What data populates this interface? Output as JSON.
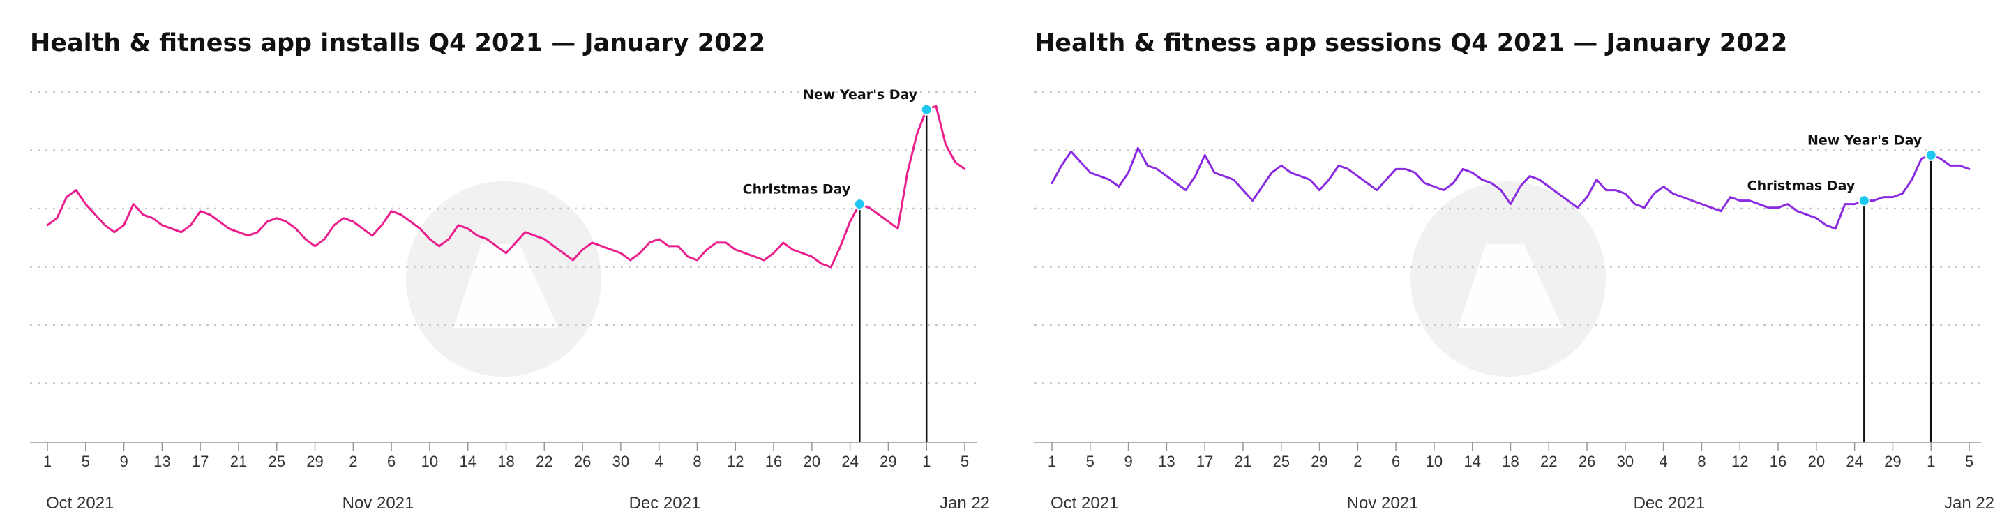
{
  "chart_data": [
    {
      "type": "line",
      "title": "Health & fitness app installs Q4 2021 — January 2022",
      "xlabel": "",
      "ylabel": "",
      "color": "#ea1e8c",
      "marker_color": "#1ec8f0",
      "grid": true,
      "x_start_date": "2021-10-01",
      "x_tick_labels": [
        "1",
        "5",
        "9",
        "13",
        "17",
        "21",
        "25",
        "29",
        "2",
        "6",
        "10",
        "14",
        "18",
        "22",
        "26",
        "30",
        "4",
        "8",
        "12",
        "16",
        "20",
        "24",
        "29",
        "1",
        "5"
      ],
      "month_labels": [
        "Oct 2021",
        "Nov 2021",
        "Dec 2021",
        "Jan 22"
      ],
      "values": [
        62,
        64,
        70,
        72,
        68,
        65,
        62,
        60,
        62,
        68,
        65,
        64,
        62,
        61,
        60,
        62,
        66,
        65,
        63,
        61,
        60,
        59,
        60,
        63,
        64,
        63,
        61,
        58,
        56,
        58,
        62,
        64,
        63,
        61,
        59,
        62,
        66,
        65,
        63,
        61,
        58,
        56,
        58,
        62,
        61,
        59,
        58,
        56,
        54,
        57,
        60,
        59,
        58,
        56,
        54,
        52,
        55,
        57,
        56,
        55,
        54,
        52,
        54,
        57,
        58,
        56,
        56,
        53,
        52,
        55,
        57,
        57,
        55,
        54,
        53,
        52,
        54,
        57,
        55,
        54,
        53,
        51,
        50,
        56,
        63,
        68,
        67,
        65,
        63,
        61,
        77,
        88,
        95,
        96,
        85,
        80,
        78
      ],
      "annotations": [
        {
          "label": "Christmas Day",
          "index": 85
        },
        {
          "label": "New Year's Day",
          "index": 92
        }
      ]
    },
    {
      "type": "line",
      "title": "Health & fitness app sessions Q4 2021 — January 2022",
      "xlabel": "",
      "ylabel": "",
      "color": "#8a2be2",
      "marker_color": "#1ec8f0",
      "grid": true,
      "x_start_date": "2021-10-01",
      "x_tick_labels": [
        "1",
        "5",
        "9",
        "13",
        "17",
        "21",
        "25",
        "29",
        "2",
        "6",
        "10",
        "14",
        "18",
        "22",
        "26",
        "30",
        "4",
        "8",
        "12",
        "16",
        "20",
        "24",
        "29",
        "1",
        "5"
      ],
      "month_labels": [
        "Oct 2021",
        "Nov 2021",
        "Dec 2021",
        "Jan 22"
      ],
      "values": [
        74,
        79,
        83,
        80,
        77,
        76,
        75,
        73,
        77,
        84,
        79,
        78,
        76,
        74,
        72,
        76,
        82,
        77,
        76,
        75,
        72,
        69,
        73,
        77,
        79,
        77,
        76,
        75,
        72,
        75,
        79,
        78,
        76,
        74,
        72,
        75,
        78,
        78,
        77,
        74,
        73,
        72,
        74,
        78,
        77,
        75,
        74,
        72,
        68,
        73,
        76,
        75,
        73,
        71,
        69,
        67,
        70,
        75,
        72,
        72,
        71,
        68,
        67,
        71,
        73,
        71,
        70,
        69,
        68,
        67,
        66,
        70,
        69,
        69,
        68,
        67,
        67,
        68,
        66,
        65,
        64,
        62,
        61,
        68,
        68,
        69,
        69,
        70,
        70,
        71,
        75,
        81,
        82,
        81,
        79,
        79,
        78
      ],
      "annotations": [
        {
          "label": "Christmas Day",
          "index": 85
        },
        {
          "label": "New Year's Day",
          "index": 92
        }
      ]
    }
  ]
}
